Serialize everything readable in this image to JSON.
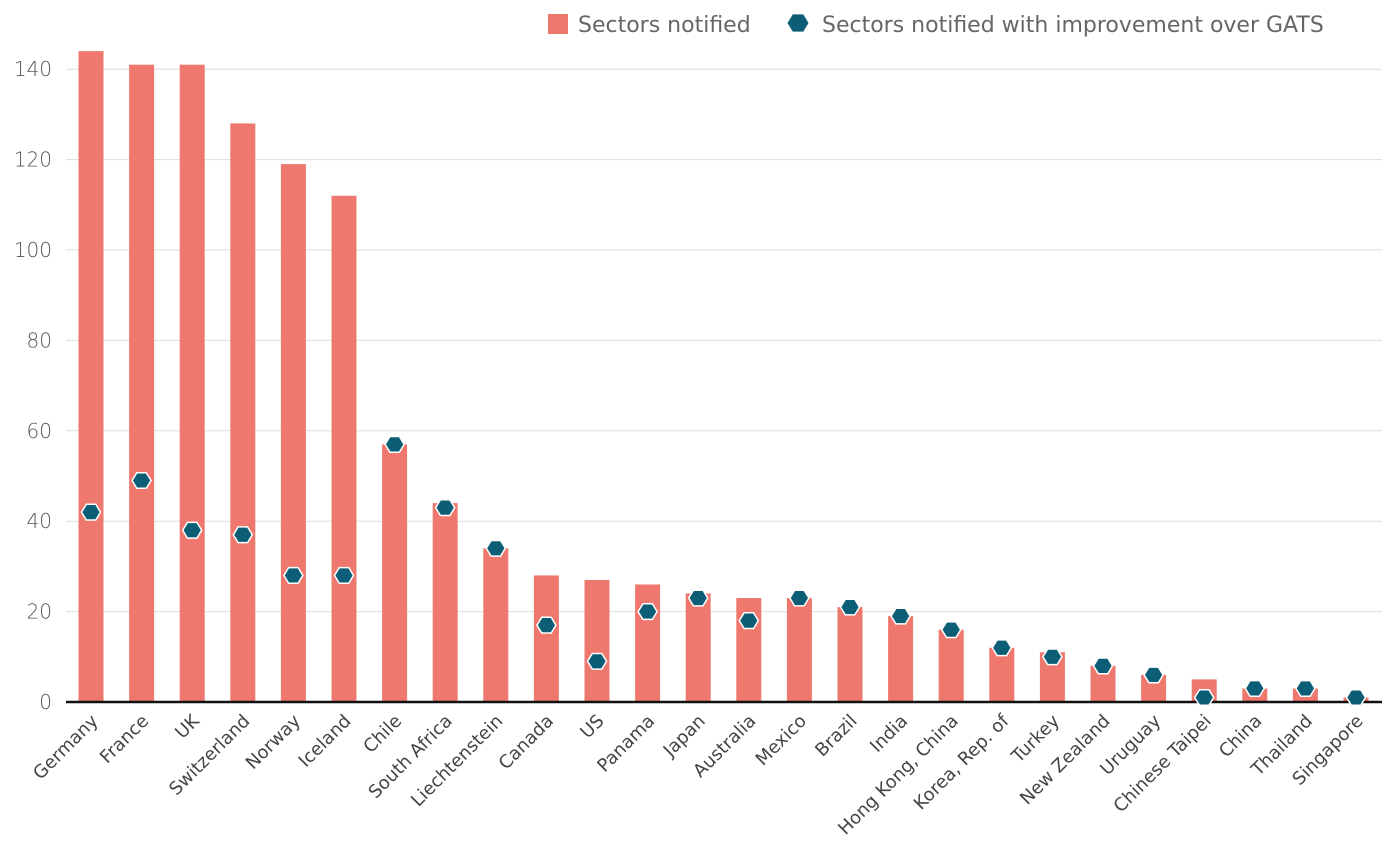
{
  "chart_data": {
    "type": "bar",
    "title": "",
    "xlabel": "",
    "ylabel": "",
    "ylim": [
      0,
      145
    ],
    "yticks": [
      0,
      20,
      40,
      60,
      80,
      100,
      120,
      140
    ],
    "grid": true,
    "legend_position": "top-right",
    "categories": [
      "Germany",
      "France",
      "UK",
      "Switzerland",
      "Norway",
      "Iceland",
      "Chile",
      "South Africa",
      "Liechtenstein",
      "Canada",
      "US",
      "Panama",
      "Japan",
      "Australia",
      "Mexico",
      "Brazil",
      "India",
      "Hong Kong, China",
      "Korea, Rep. of",
      "Turkey",
      "New Zealand",
      "Uruguay",
      "Chinese Taipei",
      "China",
      "Thailand",
      "Singapore"
    ],
    "series": [
      {
        "name": "Sectors notified",
        "kind": "bar",
        "color": "#ee786e",
        "values": [
          144,
          141,
          141,
          128,
          119,
          112,
          57,
          44,
          34,
          28,
          27,
          26,
          24,
          23,
          23,
          21,
          19,
          16,
          12,
          11,
          8,
          6,
          5,
          3,
          3,
          1
        ]
      },
      {
        "name": "Sectors notified with improvement over GATS",
        "kind": "marker",
        "marker": "hexagon",
        "color": "#0c5e76",
        "values": [
          42,
          49,
          38,
          37,
          28,
          28,
          57,
          43,
          34,
          17,
          9,
          20,
          23,
          18,
          23,
          21,
          19,
          16,
          12,
          10,
          8,
          6,
          1,
          3,
          3,
          1
        ]
      }
    ]
  }
}
